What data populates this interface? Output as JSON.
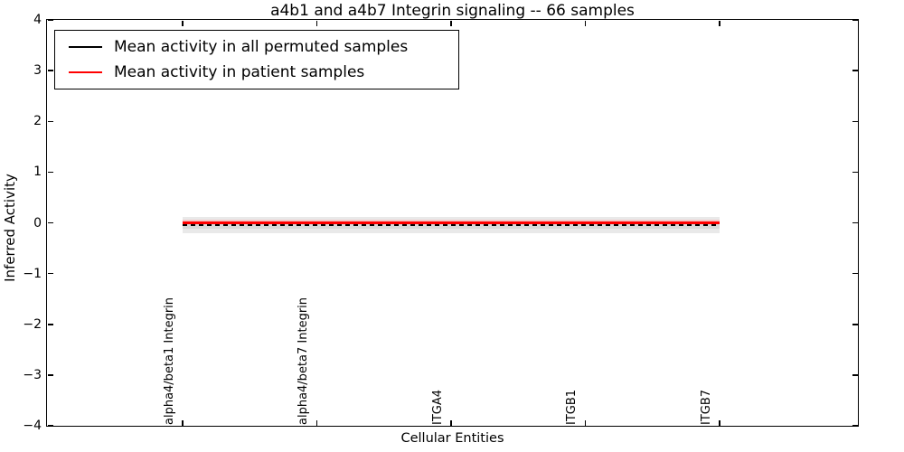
{
  "chart_data": {
    "type": "line",
    "title": "a4b1 and a4b7 Integrin signaling -- 66 samples",
    "xlabel": "Cellular Entities",
    "ylabel": "Inferred Activity",
    "ylim": [
      -4,
      4
    ],
    "grid": false,
    "legend_position": "upper left",
    "categories": [
      "alpha4/beta1 Integrin",
      "alpha4/beta7 Integrin",
      "ITGA4",
      "ITGB1",
      "ITGB7"
    ],
    "series": [
      {
        "name": "Mean activity in all permuted samples",
        "color": "#000000",
        "linestyle": "dashed",
        "values": [
          -0.04,
          -0.04,
          -0.04,
          -0.04,
          -0.04
        ]
      },
      {
        "name": "Mean activity in patient samples",
        "color": "#ff0000",
        "linestyle": "solid",
        "values": [
          0.0,
          0.0,
          0.0,
          0.0,
          0.0
        ]
      }
    ],
    "bands": [
      {
        "name": "permuted-std-band",
        "upper": 0.11,
        "lower": -0.21,
        "color": "#e9e9e9"
      },
      {
        "name": "inner-overlap-band",
        "upper": 0.05,
        "lower": -0.12,
        "color": "#d9d9d9"
      },
      {
        "name": "patient-std-band",
        "upper": 0.065,
        "lower": 0.02,
        "color": "#f1c9c9"
      }
    ]
  },
  "axes": {
    "y_ticks": [
      {
        "label": "4",
        "value": 4
      },
      {
        "label": "3",
        "value": 3
      },
      {
        "label": "2",
        "value": 2
      },
      {
        "label": "1",
        "value": 1
      },
      {
        "label": "0",
        "value": 0
      },
      {
        "label": "−1",
        "value": -1
      },
      {
        "label": "−2",
        "value": -2
      },
      {
        "label": "−3",
        "value": -3
      },
      {
        "label": "−4",
        "value": -4
      }
    ]
  },
  "legend": {
    "items": [
      {
        "label": "Mean activity in all permuted samples",
        "color": "#000000"
      },
      {
        "label": "Mean activity in patient samples",
        "color": "#ff0000"
      }
    ]
  }
}
